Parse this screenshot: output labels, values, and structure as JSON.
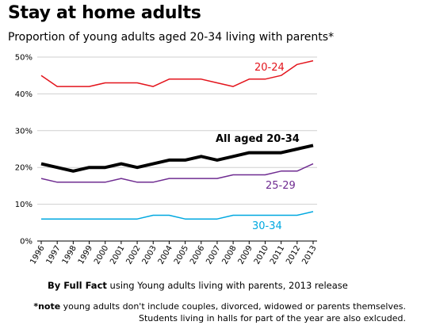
{
  "title": "Stay at home adults",
  "subtitle": "Proportion of young adults aged 20-34 living with parents*",
  "source": {
    "bold": "By Full Fact",
    "rest": " using Young adults living with parents, 2013 release"
  },
  "note": {
    "bold": "*note",
    "rest": " young adults don't include couples, divorced, widowed or parents themselves. Students living in halls for part of the year are also exlcuded."
  },
  "chart_data": {
    "type": "line",
    "x": [
      "1996",
      "1997",
      "1998",
      "1999",
      "2000",
      "2001",
      "2002",
      "2003",
      "2004",
      "2005",
      "2006",
      "2007",
      "2008",
      "2009",
      "2010",
      "2011",
      "2012",
      "2013"
    ],
    "y_ticks": [
      "0%",
      "10%",
      "20%",
      "30%",
      "40%",
      "50%"
    ],
    "ylim": [
      0,
      50
    ],
    "grid": true,
    "series": [
      {
        "name": "20-24",
        "color": "#e3141c",
        "values": [
          45,
          42,
          42,
          42,
          43,
          43,
          43,
          42,
          44,
          44,
          44,
          43,
          42,
          44,
          44,
          45,
          48,
          49
        ]
      },
      {
        "name": "All aged 20-34",
        "color": "#000000",
        "values": [
          21,
          20,
          19,
          20,
          20,
          21,
          20,
          21,
          22,
          22,
          23,
          22,
          23,
          24,
          24,
          24,
          25,
          26
        ]
      },
      {
        "name": "25-29",
        "color": "#6f2c91",
        "values": [
          17,
          16,
          16,
          16,
          16,
          17,
          16,
          16,
          17,
          17,
          17,
          17,
          18,
          18,
          18,
          19,
          19,
          21
        ]
      },
      {
        "name": "30-34",
        "color": "#00a8e0",
        "values": [
          6,
          6,
          6,
          6,
          6,
          6,
          6,
          7,
          7,
          6,
          6,
          6,
          7,
          7,
          7,
          7,
          7,
          8
        ]
      }
    ]
  }
}
